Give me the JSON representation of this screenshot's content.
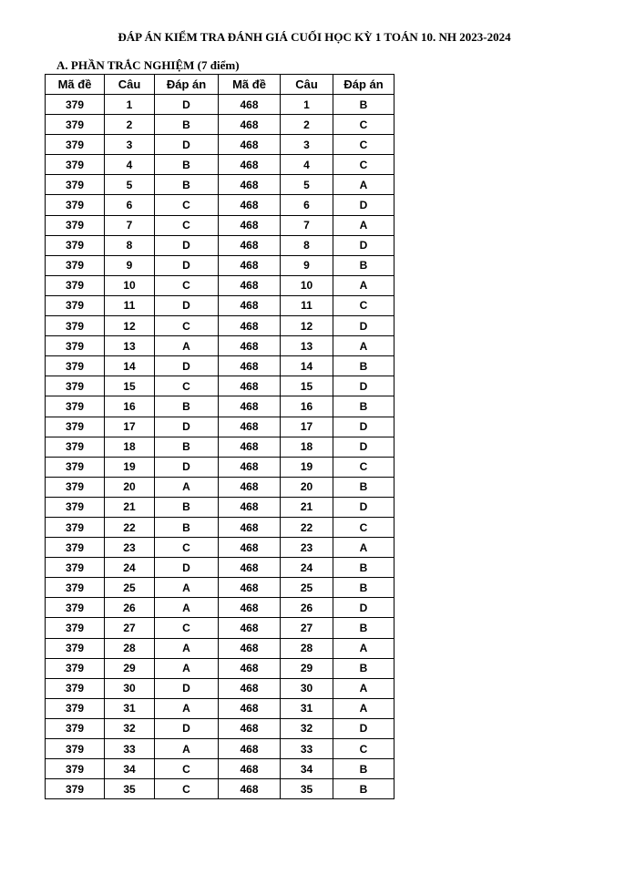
{
  "title": "ĐÁP ÁN KIỂM TRA ĐÁNH GIÁ CUỐI HỌC KỲ 1 TOÁN 10. NH 2023-2024",
  "section": "A. PHẦN TRẮC NGHIỆM (7 điểm)",
  "headers": [
    "Mã đề",
    "Câu",
    "Đáp án",
    "Mã đề",
    "Câu",
    "Đáp án"
  ],
  "left": {
    "code": "379",
    "answers": [
      "D",
      "B",
      "D",
      "B",
      "B",
      "C",
      "C",
      "D",
      "D",
      "C",
      "D",
      "C",
      "A",
      "D",
      "C",
      "B",
      "D",
      "B",
      "D",
      "A",
      "B",
      "B",
      "C",
      "D",
      "A",
      "A",
      "C",
      "A",
      "A",
      "D",
      "A",
      "D",
      "A",
      "C",
      "C"
    ]
  },
  "right": {
    "code": "468",
    "answers": [
      "B",
      "C",
      "C",
      "C",
      "A",
      "D",
      "A",
      "D",
      "B",
      "A",
      "C",
      "D",
      "A",
      "B",
      "D",
      "B",
      "D",
      "D",
      "C",
      "B",
      "D",
      "C",
      "A",
      "B",
      "B",
      "D",
      "B",
      "A",
      "B",
      "A",
      "A",
      "D",
      "C",
      "B",
      "B"
    ]
  }
}
